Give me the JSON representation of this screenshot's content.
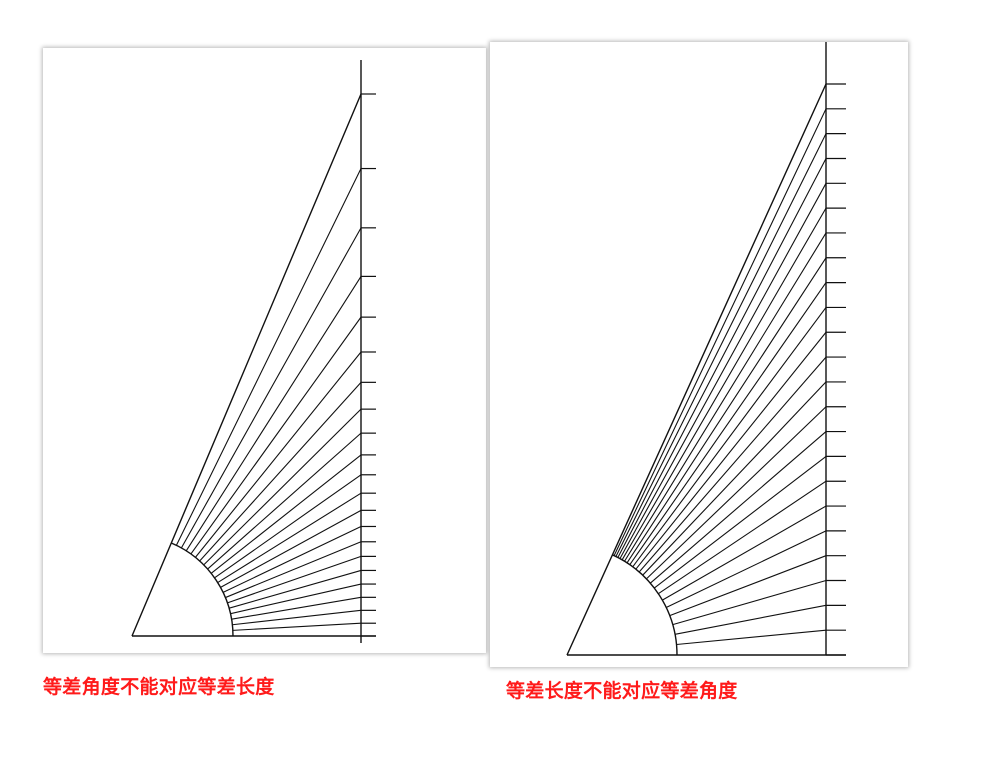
{
  "diagrams": [
    {
      "id": "left",
      "caption": "等差角度不能对应等差长度",
      "spacing": "equal-angle",
      "ray_count": 22,
      "colors": {
        "stroke": "#111111",
        "caption": "#ff1a1a"
      }
    },
    {
      "id": "right",
      "caption": "等差长度不能对应等差角度",
      "spacing": "equal-length",
      "ray_count": 24,
      "colors": {
        "stroke": "#111111",
        "caption": "#ff1a1a"
      }
    }
  ]
}
